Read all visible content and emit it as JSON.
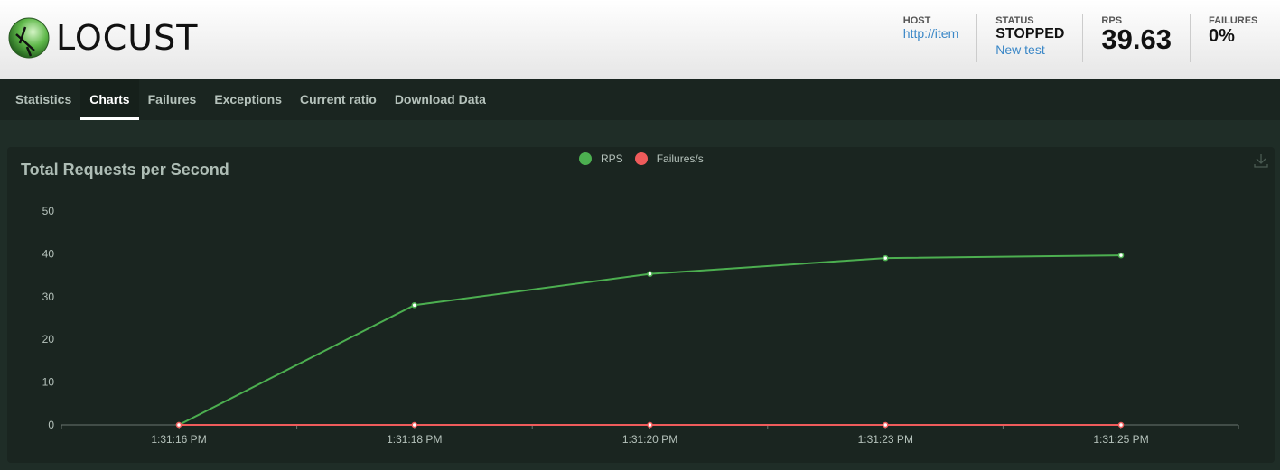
{
  "header": {
    "logo_text": "LOCUST",
    "host": {
      "label": "HOST",
      "value": "http://item"
    },
    "status": {
      "label": "STATUS",
      "value": "STOPPED",
      "action": "New test"
    },
    "rps": {
      "label": "RPS",
      "value": "39.63"
    },
    "failures": {
      "label": "FAILURES",
      "value": "0%"
    }
  },
  "nav": {
    "tabs": [
      {
        "label": "Statistics"
      },
      {
        "label": "Charts",
        "active": true
      },
      {
        "label": "Failures"
      },
      {
        "label": "Exceptions"
      },
      {
        "label": "Current ratio"
      },
      {
        "label": "Download Data"
      }
    ]
  },
  "chart_data": {
    "type": "line",
    "title": "Total Requests per Second",
    "categories": [
      "1:31:16 PM",
      "1:31:18 PM",
      "1:31:20 PM",
      "1:31:23 PM",
      "1:31:25 PM"
    ],
    "series": [
      {
        "name": "RPS",
        "color": "#4caf50",
        "values": [
          0,
          28,
          35.3,
          39,
          39.63
        ]
      },
      {
        "name": "Failures/s",
        "color": "#ef5b5b",
        "values": [
          0,
          0,
          0,
          0,
          0
        ]
      }
    ],
    "yticks": [
      0,
      10,
      20,
      30,
      40,
      50
    ],
    "ylim": [
      0,
      50
    ],
    "legend": "top-center",
    "grid": false
  },
  "icons": {
    "download": "download-icon"
  }
}
